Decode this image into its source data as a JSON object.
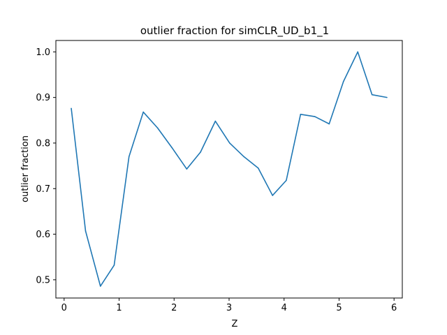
{
  "chart_data": {
    "type": "line",
    "title": "outlier fraction for simCLR_UD_b1_1",
    "xlabel": "Z",
    "ylabel": "outlier fraction",
    "xlim": [
      -0.15,
      6.15
    ],
    "ylim": [
      0.46,
      1.025
    ],
    "x_ticks": [
      0,
      1,
      2,
      3,
      4,
      5,
      6
    ],
    "y_ticks": [
      0.5,
      0.6,
      0.7,
      0.8,
      0.9,
      1.0
    ],
    "x_tick_labels": [
      "0",
      "1",
      "2",
      "3",
      "4",
      "5",
      "6"
    ],
    "y_tick_labels": [
      "0.5",
      "0.6",
      "0.7",
      "0.8",
      "0.9",
      "1.0"
    ],
    "grid": false,
    "series": [
      {
        "color": "#1f77b4",
        "x": [
          0.13,
          0.39,
          0.66,
          0.91,
          1.18,
          1.44,
          1.7,
          1.96,
          2.23,
          2.48,
          2.75,
          3.01,
          3.27,
          3.53,
          3.79,
          4.04,
          4.3,
          4.56,
          4.82,
          5.08,
          5.34,
          5.6,
          5.87
        ],
        "y": [
          0.876,
          0.607,
          0.486,
          0.532,
          0.77,
          0.868,
          0.833,
          0.79,
          0.743,
          0.78,
          0.848,
          0.8,
          0.77,
          0.745,
          0.685,
          0.718,
          0.863,
          0.858,
          0.842,
          0.935,
          1.0,
          0.906,
          0.9
        ]
      }
    ]
  }
}
